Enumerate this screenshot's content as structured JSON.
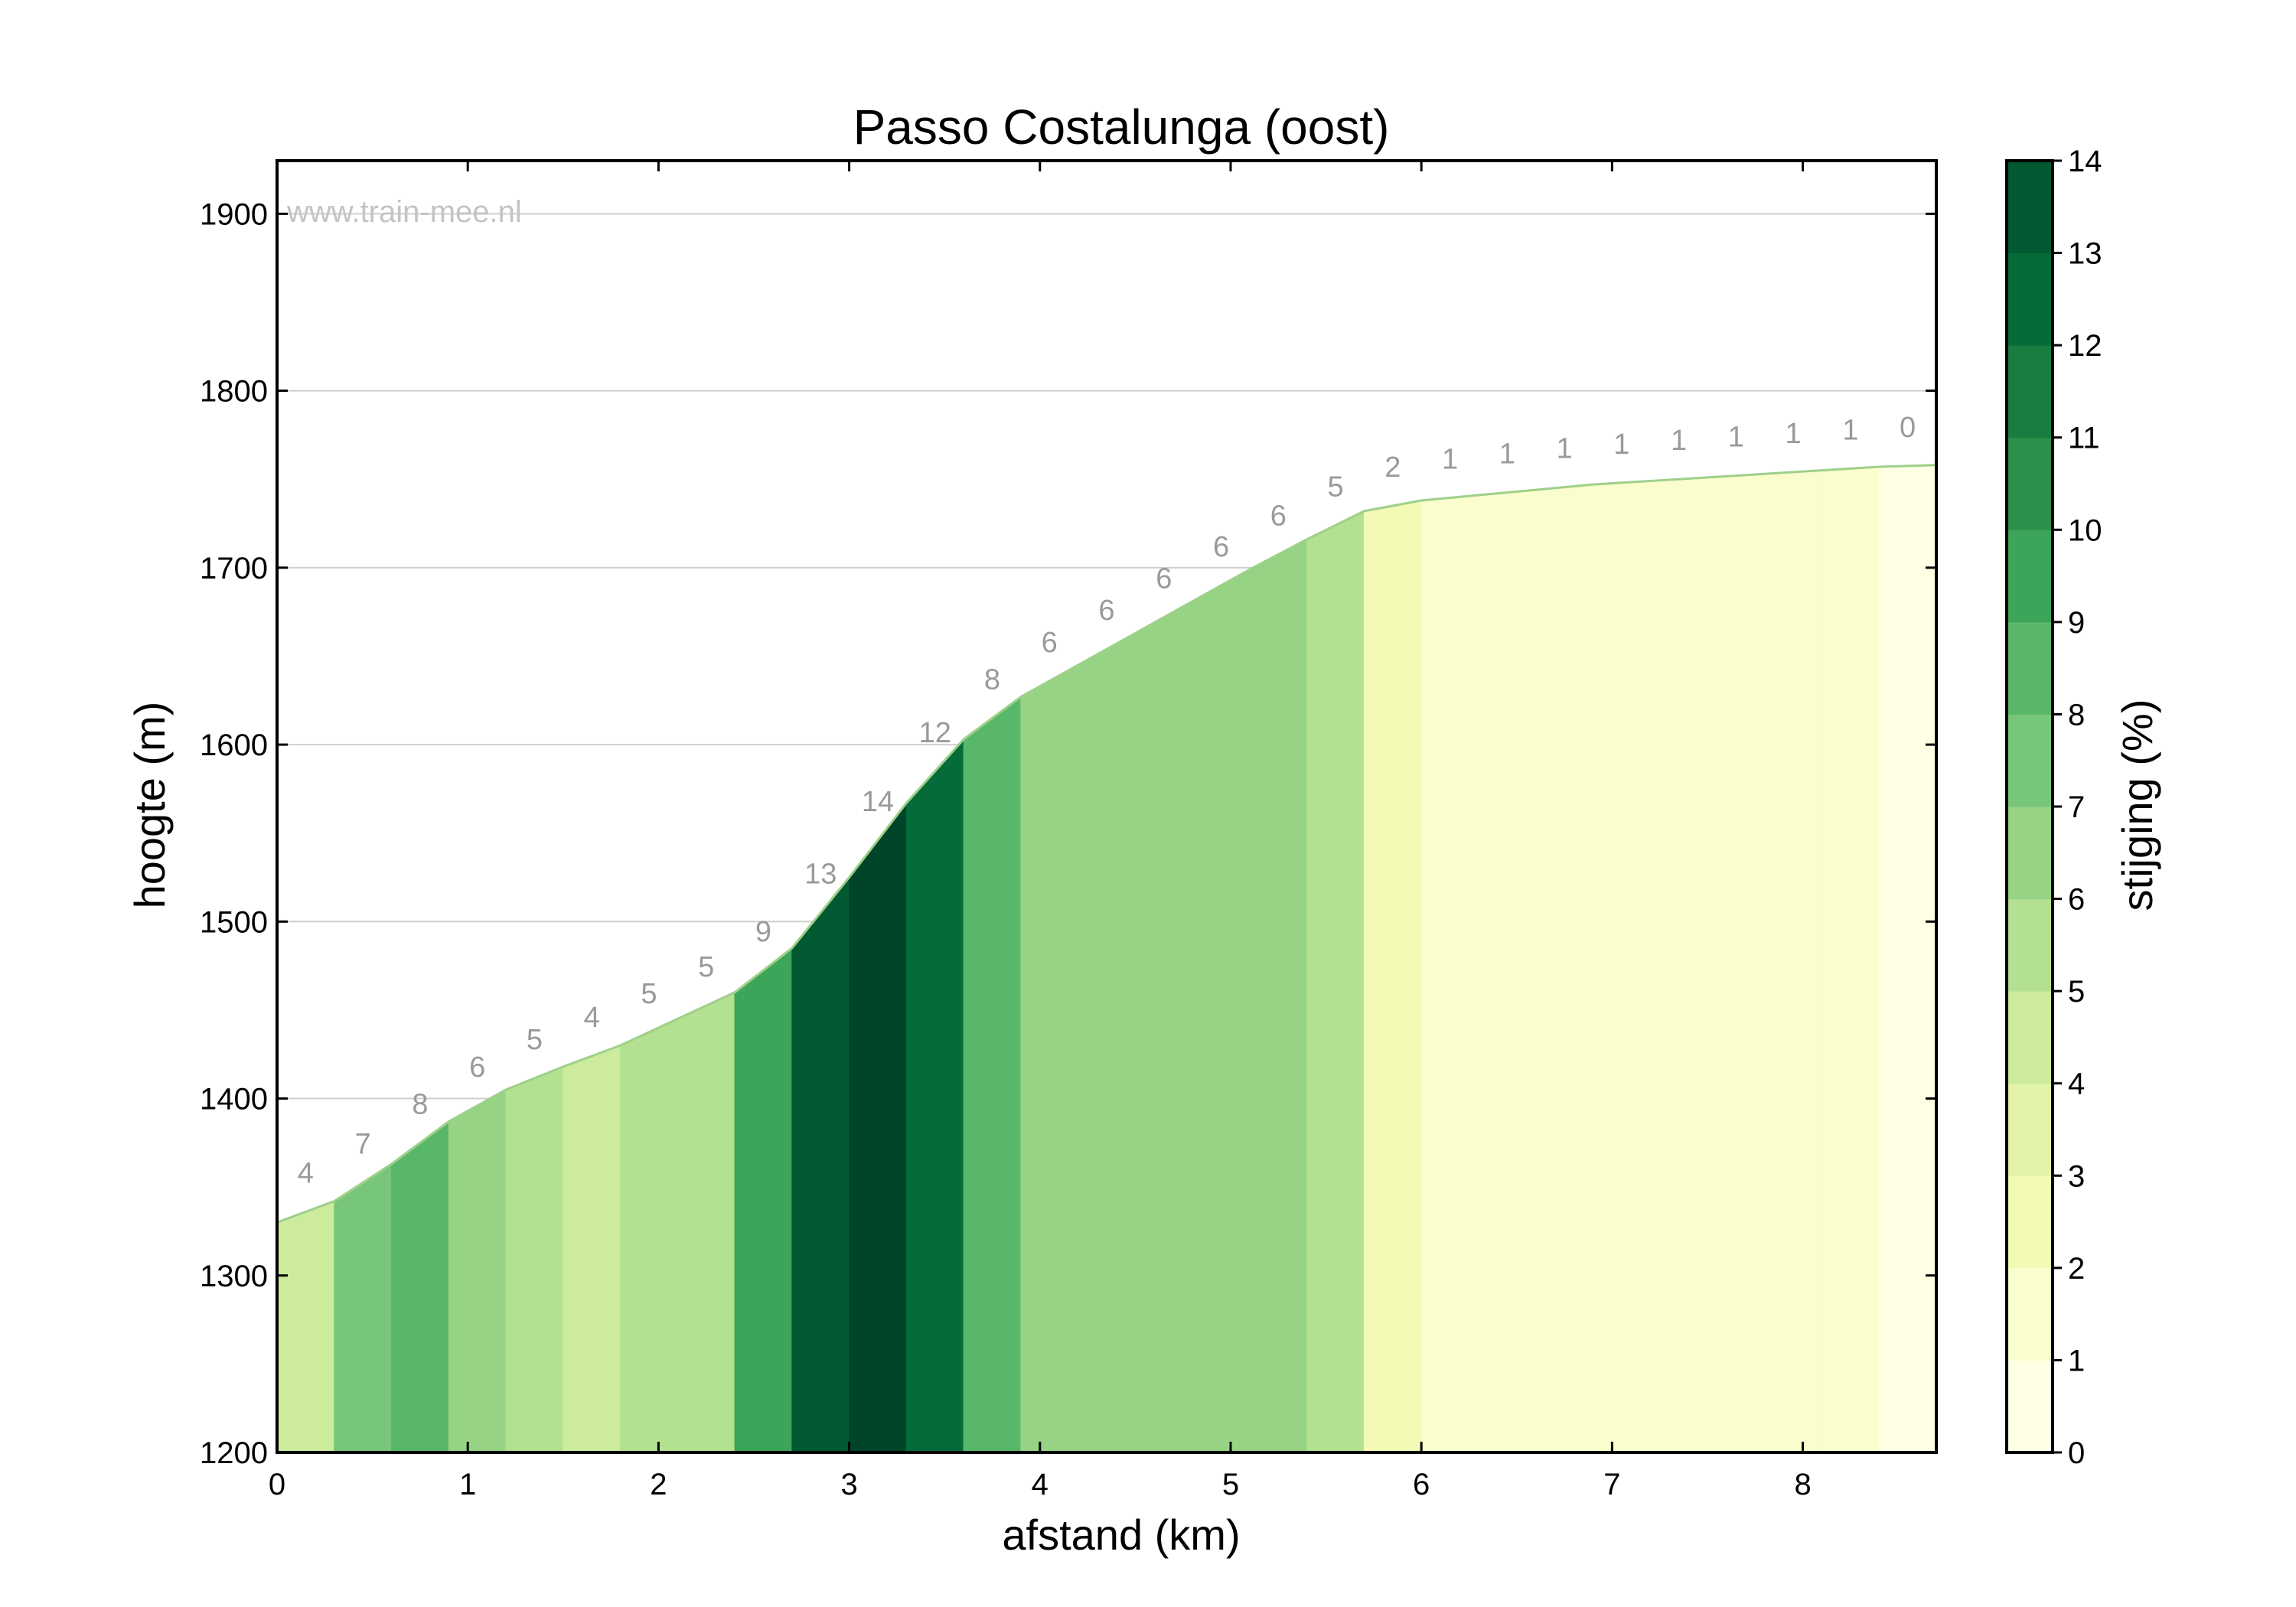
{
  "chart_data": {
    "type": "area",
    "title": "Passo Costalunga (oost)",
    "xlabel": "afstand (km)",
    "ylabel": "hoogte (m)",
    "colorbar_label": "stijging (%)",
    "watermark": "www.train-mee.nl",
    "xlim": [
      0,
      8.7
    ],
    "ylim": [
      1200,
      1930
    ],
    "x_ticks": [
      0,
      1,
      2,
      3,
      4,
      5,
      6,
      7,
      8
    ],
    "y_ticks": [
      1200,
      1300,
      1400,
      1500,
      1600,
      1700,
      1800,
      1900
    ],
    "grid": "horizontal",
    "colorbar_ticks": [
      0,
      1,
      2,
      3,
      4,
      5,
      6,
      7,
      8,
      9,
      10,
      11,
      12,
      13,
      14
    ],
    "colorbar_range": [
      0,
      14
    ],
    "colormap": [
      "#ffffe5",
      "#f7fcb9",
      "#d9f0a3",
      "#addd8e",
      "#78c679",
      "#41ab5d",
      "#238443",
      "#006837",
      "#004529"
    ],
    "profile_x": [
      0,
      0.3,
      0.6,
      0.9,
      1.2,
      1.5,
      1.8,
      2.1,
      2.4,
      2.7,
      3.0,
      3.3,
      3.6,
      3.9,
      4.2,
      4.5,
      4.8,
      5.1,
      5.4,
      5.7,
      6.0,
      6.3,
      6.6,
      6.9,
      7.2,
      7.5,
      7.8,
      8.1,
      8.4,
      8.7
    ],
    "profile_y": [
      1330,
      1342,
      1363,
      1387,
      1405,
      1418,
      1430,
      1445,
      1460,
      1485,
      1525,
      1567,
      1603,
      1627,
      1645,
      1663,
      1681,
      1699,
      1716,
      1732,
      1738,
      1741,
      1744,
      1747,
      1749,
      1751,
      1753,
      1755,
      1757,
      1758
    ],
    "segment_grades": [
      4,
      7,
      8,
      6,
      5,
      4,
      5,
      5,
      9,
      13,
      14,
      12,
      8,
      6,
      6,
      6,
      6,
      6,
      5,
      2,
      1,
      1,
      1,
      1,
      1,
      1,
      1,
      1,
      0
    ]
  }
}
